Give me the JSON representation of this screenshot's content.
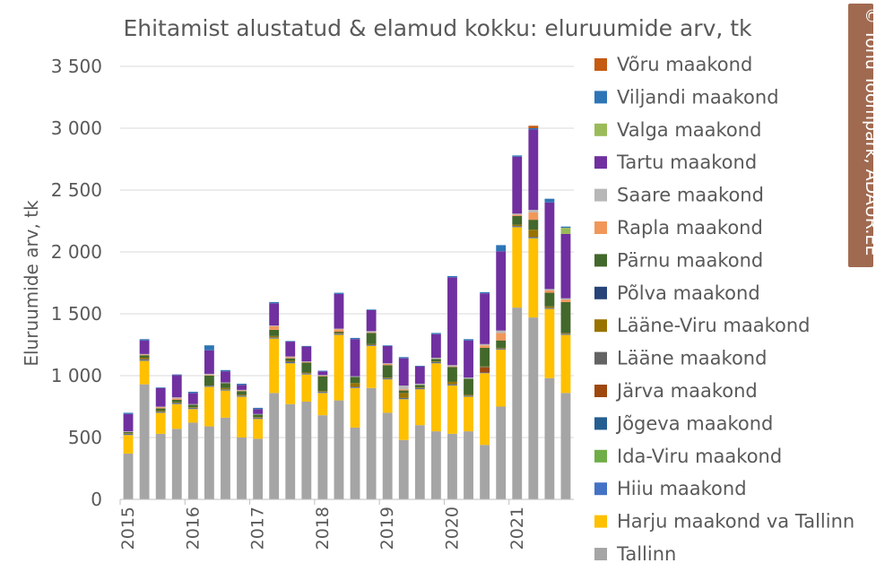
{
  "chart_data": {
    "type": "bar",
    "stacked": true,
    "title": "Ehitamist alustatud & elamud kokku: eluruumide arv, tk",
    "ylabel": "Eluruumide arv, tk",
    "xlabel": "",
    "ylim": [
      0,
      3500
    ],
    "yticks": [
      0,
      500,
      1000,
      1500,
      2000,
      2500,
      3000,
      3500
    ],
    "ytick_labels": [
      "0",
      "500",
      "1 000",
      "1 500",
      "2 000",
      "2 500",
      "3 000",
      "3 500"
    ],
    "grid": true,
    "legend_position": "right",
    "year_labels": [
      "2015",
      "2016",
      "2017",
      "2018",
      "2019",
      "2020",
      "2021"
    ],
    "bars_per_year": 4,
    "categories": [
      "2015 Q1",
      "2015 Q2",
      "2015 Q3",
      "2015 Q4",
      "2016 Q1",
      "2016 Q2",
      "2016 Q3",
      "2016 Q4",
      "2017 Q1",
      "2017 Q2",
      "2017 Q3",
      "2017 Q4",
      "2018 Q1",
      "2018 Q2",
      "2018 Q3",
      "2018 Q4",
      "2019 Q1",
      "2019 Q2",
      "2019 Q3",
      "2019 Q4",
      "2020 Q1",
      "2020 Q2",
      "2020 Q3",
      "2020 Q4",
      "2021 Q1",
      "2021 Q2",
      "2021 Q3",
      "2021 Q4"
    ],
    "series": [
      {
        "name": "Tallinn",
        "color": "#a5a5a5",
        "values": [
          370,
          930,
          530,
          570,
          620,
          590,
          660,
          500,
          490,
          860,
          770,
          790,
          680,
          800,
          580,
          900,
          700,
          480,
          600,
          550,
          530,
          550,
          440,
          750,
          1550,
          1470,
          980,
          860
        ]
      },
      {
        "name": "Harju maakond va Tallinn",
        "color": "#ffc000",
        "values": [
          150,
          190,
          170,
          200,
          110,
          320,
          220,
          330,
          160,
          440,
          330,
          220,
          180,
          530,
          320,
          340,
          270,
          330,
          290,
          550,
          390,
          280,
          580,
          460,
          650,
          640,
          560,
          470
        ]
      },
      {
        "name": "Hiiu maakond",
        "color": "#4472c4",
        "values": [
          5,
          5,
          5,
          5,
          5,
          5,
          5,
          5,
          5,
          5,
          5,
          5,
          5,
          5,
          5,
          5,
          5,
          5,
          5,
          5,
          5,
          5,
          5,
          5,
          5,
          5,
          5,
          5
        ]
      },
      {
        "name": "Ida-Viru maakond",
        "color": "#70ad47",
        "values": [
          0,
          0,
          0,
          0,
          0,
          0,
          0,
          0,
          0,
          0,
          0,
          0,
          0,
          0,
          0,
          0,
          0,
          0,
          0,
          0,
          0,
          0,
          0,
          0,
          0,
          0,
          0,
          0
        ]
      },
      {
        "name": "Jõgeva maakond",
        "color": "#255e91",
        "values": [
          0,
          0,
          0,
          0,
          0,
          0,
          0,
          0,
          0,
          0,
          0,
          0,
          0,
          0,
          0,
          0,
          0,
          0,
          0,
          0,
          0,
          0,
          0,
          0,
          0,
          0,
          0,
          0
        ]
      },
      {
        "name": "Järva maakond",
        "color": "#9e480e",
        "values": [
          0,
          0,
          0,
          0,
          0,
          0,
          0,
          0,
          0,
          0,
          0,
          0,
          0,
          0,
          0,
          0,
          0,
          0,
          0,
          0,
          0,
          0,
          40,
          0,
          0,
          0,
          0,
          0
        ]
      },
      {
        "name": "Lääne maakond",
        "color": "#636363",
        "values": [
          5,
          10,
          5,
          5,
          5,
          5,
          5,
          5,
          5,
          5,
          10,
          5,
          5,
          5,
          5,
          5,
          5,
          5,
          5,
          5,
          5,
          5,
          5,
          5,
          5,
          5,
          5,
          5
        ]
      },
      {
        "name": "Lääne-Viru maakond",
        "color": "#997300",
        "values": [
          5,
          10,
          5,
          5,
          5,
          0,
          10,
          5,
          5,
          10,
          5,
          5,
          5,
          5,
          30,
          5,
          5,
          40,
          5,
          5,
          20,
          5,
          5,
          5,
          10,
          60,
          10,
          5
        ]
      },
      {
        "name": "Põlva maakond",
        "color": "#264478",
        "values": [
          0,
          0,
          0,
          0,
          0,
          0,
          0,
          0,
          0,
          0,
          0,
          0,
          0,
          0,
          0,
          0,
          0,
          0,
          0,
          0,
          0,
          0,
          0,
          0,
          0,
          0,
          0,
          0
        ]
      },
      {
        "name": "Pärnu maakond",
        "color": "#43682b",
        "values": [
          10,
          20,
          20,
          20,
          20,
          80,
          40,
          30,
          20,
          50,
          20,
          80,
          120,
          10,
          50,
          90,
          100,
          20,
          20,
          20,
          120,
          130,
          150,
          60,
          70,
          80,
          110,
          250
        ]
      },
      {
        "name": "Rapla maakond",
        "color": "#f1975a",
        "values": [
          0,
          5,
          10,
          10,
          0,
          5,
          0,
          5,
          0,
          30,
          10,
          5,
          5,
          20,
          0,
          5,
          10,
          10,
          0,
          0,
          5,
          0,
          20,
          60,
          10,
          60,
          20,
          20
        ]
      },
      {
        "name": "Saare maakond",
        "color": "#b7b7b7",
        "values": [
          5,
          5,
          5,
          10,
          5,
          10,
          5,
          5,
          5,
          5,
          5,
          5,
          5,
          5,
          5,
          10,
          5,
          30,
          10,
          10,
          10,
          10,
          10,
          20,
          10,
          20,
          10,
          10
        ]
      },
      {
        "name": "Tartu maakond",
        "color": "#7030a0",
        "values": [
          140,
          110,
          150,
          180,
          90,
          190,
          90,
          40,
          40,
          180,
          120,
          120,
          30,
          280,
          300,
          170,
          140,
          220,
          140,
          190,
          710,
          300,
          410,
          640,
          460,
          650,
          700,
          520
        ]
      },
      {
        "name": "Valga maakond",
        "color": "#9bbb59",
        "values": [
          0,
          0,
          0,
          0,
          0,
          0,
          0,
          0,
          0,
          0,
          0,
          0,
          0,
          0,
          0,
          0,
          0,
          0,
          0,
          0,
          0,
          0,
          0,
          0,
          0,
          0,
          0,
          50
        ]
      },
      {
        "name": "Viljandi maakond",
        "color": "#2e75b6",
        "values": [
          10,
          10,
          5,
          5,
          10,
          40,
          10,
          10,
          10,
          10,
          5,
          5,
          5,
          10,
          10,
          5,
          5,
          10,
          5,
          10,
          10,
          10,
          10,
          50,
          10,
          10,
          30,
          10
        ]
      },
      {
        "name": "Võru maakond",
        "color": "#c55a11",
        "values": [
          0,
          0,
          0,
          0,
          0,
          0,
          0,
          0,
          0,
          0,
          0,
          0,
          0,
          0,
          0,
          0,
          0,
          0,
          0,
          0,
          0,
          0,
          0,
          0,
          0,
          20,
          0,
          0
        ]
      }
    ]
  },
  "credit": {
    "symbol": "©",
    "text": "Tõnu Toompark, ADAUR.EE",
    "background": "#a06a50"
  }
}
